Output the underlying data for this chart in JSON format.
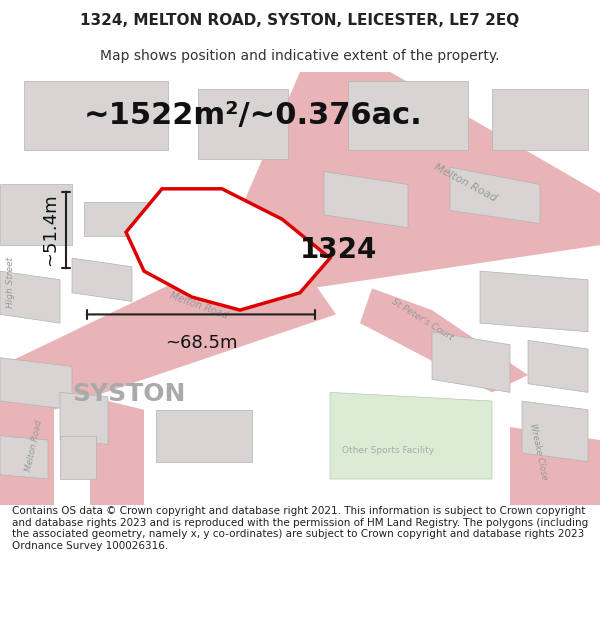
{
  "title_line1": "1324, MELTON ROAD, SYSTON, LEICESTER, LE7 2EQ",
  "title_line2": "Map shows position and indicative extent of the property.",
  "footer_text": "Contains OS data © Crown copyright and database right 2021. This information is subject to Crown copyright and database rights 2023 and is reproduced with the permission of HM Land Registry. The polygons (including the associated geometry, namely x, y co-ordinates) are subject to Crown copyright and database rights 2023 Ordnance Survey 100026316.",
  "area_label": "~1522m²/~0.376ac.",
  "property_label": "1324",
  "width_label": "~68.5m",
  "height_label": "~51.4m",
  "map_bg": "#ede9e9",
  "road_color": "#e8b4b8",
  "building_fill": "#d8d4d4",
  "building_edge": "#b8b0b0",
  "property_fill": "#ffffff",
  "property_edge": "#dd0000",
  "property_edge_width": 2.5,
  "green_fill": "#dcecd4",
  "green_edge": "#b8c8b0",
  "dim_color": "#222222",
  "label_color": "#111111",
  "road_label_color": "#999999",
  "syston_color": "#aaaaaa",
  "title_fontsize": 11,
  "subtitle_fontsize": 10,
  "footer_fontsize": 7.5,
  "area_fontsize": 22,
  "property_label_fontsize": 20,
  "dim_label_fontsize": 13,
  "syston_fontsize": 18
}
